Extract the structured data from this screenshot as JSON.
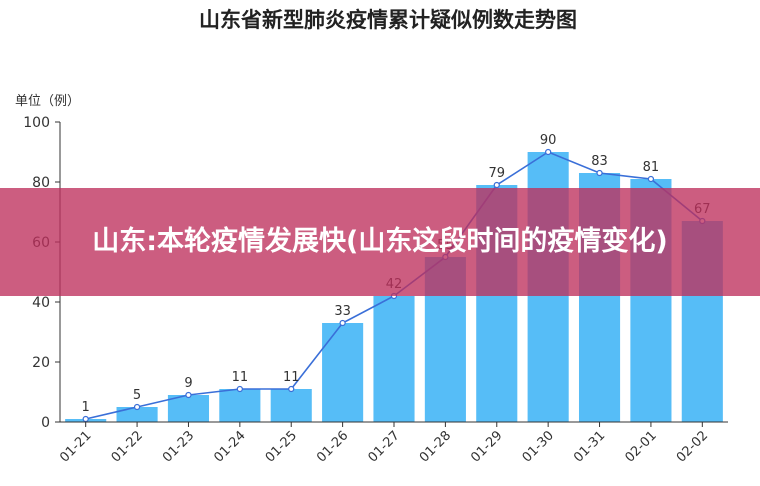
{
  "chart_data": {
    "type": "bar",
    "title": "山东省新型肺炎疫情累计疑似例数走势图",
    "ylabel": "单位（例）",
    "xlabel": "",
    "ylim": [
      0,
      100
    ],
    "yticks": [
      0,
      20,
      40,
      60,
      80,
      100
    ],
    "categories": [
      "01-21",
      "01-22",
      "01-23",
      "01-24",
      "01-25",
      "01-26",
      "01-27",
      "01-28",
      "01-29",
      "01-30",
      "01-31",
      "02-01",
      "02-02"
    ],
    "values": [
      1,
      5,
      9,
      11,
      11,
      33,
      42,
      55,
      79,
      90,
      83,
      81,
      67
    ],
    "overlay_line": true,
    "grid": false,
    "legend": "none"
  },
  "banner": {
    "text": "山东:本轮疫情发展快(山东这段时间的疫情变化)"
  },
  "colors": {
    "bar": "#56bdf7",
    "line": "#3a6fd8",
    "axis": "#333333",
    "banner": "#be305c"
  }
}
